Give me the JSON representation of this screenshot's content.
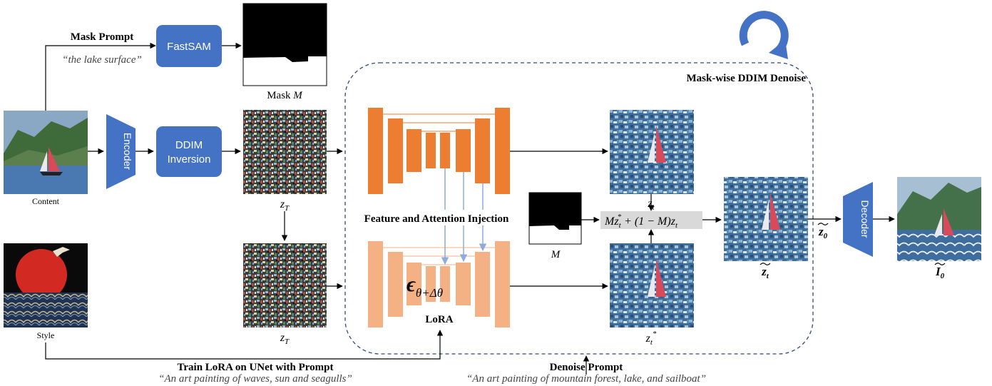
{
  "mask_prompt": {
    "title": "Mask Prompt",
    "text": "“the lake surface”"
  },
  "fastsam": {
    "label": "FastSAM"
  },
  "mask_caption": {
    "name": "Mask ",
    "symbol": "M"
  },
  "mask_wise_label": "Mask-wise DDIM Denoise",
  "content_label": "Content",
  "style_label": "Style",
  "encoder_label": "Encoder",
  "decoder_label": "Decoder",
  "ddim_inversion": {
    "line1": "DDIM",
    "line2": "Inversion"
  },
  "zT_upper": {
    "base": "z",
    "sub": "T"
  },
  "zT_lower": {
    "base": "z",
    "sub": "T"
  },
  "feature_injection": "Feature and Attention Injection",
  "epsilon": {
    "base": "ϵ",
    "sub": "θ+Δθ"
  },
  "lora_label": "LoRA",
  "mask_small": "M",
  "zt_label": {
    "base": "z",
    "sub": "t"
  },
  "zt_star_label": {
    "base": "z",
    "sub": "t",
    "sup": "*"
  },
  "blend_formula": {
    "p1": "Mz",
    "p1_sub": "t",
    "p1_sup": "*",
    "p2": " + (1 − M)z",
    "p2_sub": "t"
  },
  "zt_tilde": {
    "base": "z",
    "sub": "t"
  },
  "z0_tilde": {
    "base": "z",
    "sub": "0"
  },
  "i0_tilde": {
    "base": "I",
    "sub": "0"
  },
  "train_lora": {
    "title": "Train LoRA on UNet with Prompt",
    "text": "“An art painting of waves, sun and seagulls”"
  },
  "denoise_prompt": {
    "title": "Denoise Prompt",
    "text": "“An art painting of mountain forest, lake, and sailboat”"
  },
  "colors": {
    "blue_box": "#4472c4",
    "unet_orange": "#ed7d31",
    "lora_orange": "#f4b183",
    "dashed_border": "#2f4a7a",
    "injection_arrow": "#8faadc",
    "formula_bg": "#d9d9d9"
  }
}
